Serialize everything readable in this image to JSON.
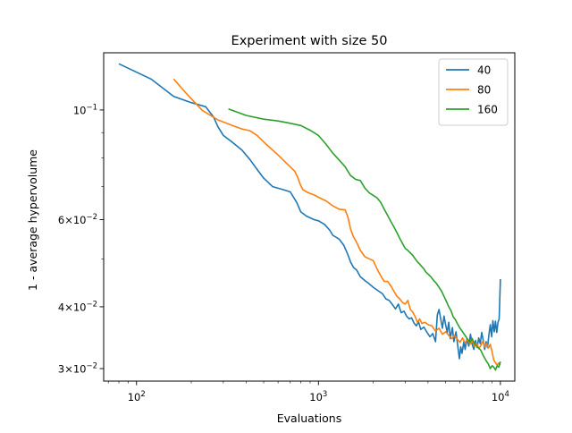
{
  "chart_data": {
    "type": "line",
    "title": "Experiment with size 50",
    "xlabel": "Evaluations",
    "ylabel": "1 - average hypervolume",
    "xscale": "log",
    "yscale": "log",
    "xlim": [
      66,
      12000
    ],
    "ylim": [
      0.0283,
      0.1305
    ],
    "grid": false,
    "legend_position": "top-right",
    "x_ticks": [
      {
        "value": 100,
        "base": "10",
        "exp": "2"
      },
      {
        "value": 1000,
        "base": "10",
        "exp": "3"
      },
      {
        "value": 10000,
        "base": "10",
        "exp": "4"
      }
    ],
    "y_ticks": [
      {
        "value": 0.1,
        "base": "10",
        "exp": "−1"
      },
      {
        "value": 0.06,
        "mant": "6",
        "base": "10",
        "exp": "−2"
      },
      {
        "value": 0.04,
        "mant": "4",
        "base": "10",
        "exp": "−2"
      },
      {
        "value": 0.03,
        "mant": "3",
        "base": "10",
        "exp": "−2"
      }
    ],
    "y_minor_ticks": [
      0.09,
      0.08,
      0.07,
      0.05
    ],
    "series": [
      {
        "name": "40",
        "color": "#1f77b4",
        "points": [
          [
            80,
            0.124
          ],
          [
            120,
            0.1155
          ],
          [
            160,
            0.1065
          ],
          [
            200,
            0.1035
          ],
          [
            240,
            0.1015
          ],
          [
            265,
            0.0968
          ],
          [
            280,
            0.0925
          ],
          [
            300,
            0.0888
          ],
          [
            340,
            0.0858
          ],
          [
            380,
            0.0829
          ],
          [
            420,
            0.0794
          ],
          [
            460,
            0.0758
          ],
          [
            500,
            0.0728
          ],
          [
            560,
            0.07
          ],
          [
            640,
            0.069
          ],
          [
            700,
            0.0683
          ],
          [
            760,
            0.065
          ],
          [
            800,
            0.0622
          ],
          [
            860,
            0.061
          ],
          [
            950,
            0.06
          ],
          [
            1000,
            0.0597
          ],
          [
            1080,
            0.0587
          ],
          [
            1150,
            0.0572
          ],
          [
            1200,
            0.0558
          ],
          [
            1300,
            0.0548
          ],
          [
            1380,
            0.0532
          ],
          [
            1450,
            0.051
          ],
          [
            1500,
            0.0493
          ],
          [
            1560,
            0.048
          ],
          [
            1620,
            0.0475
          ],
          [
            1700,
            0.046
          ],
          [
            1800,
            0.0452
          ],
          [
            1900,
            0.0445
          ],
          [
            2000,
            0.0438
          ],
          [
            2150,
            0.043
          ],
          [
            2250,
            0.0425
          ],
          [
            2350,
            0.0415
          ],
          [
            2450,
            0.0412
          ],
          [
            2550,
            0.0404
          ],
          [
            2650,
            0.0396
          ],
          [
            2750,
            0.0405
          ],
          [
            2850,
            0.0389
          ],
          [
            2950,
            0.0392
          ],
          [
            3050,
            0.0383
          ],
          [
            3150,
            0.0378
          ],
          [
            3250,
            0.038
          ],
          [
            3350,
            0.0371
          ],
          [
            3450,
            0.0366
          ],
          [
            3550,
            0.0373
          ],
          [
            3650,
            0.036
          ],
          [
            3800,
            0.0364
          ],
          [
            3950,
            0.0355
          ],
          [
            4100,
            0.0348
          ],
          [
            4250,
            0.0353
          ],
          [
            4400,
            0.034
          ],
          [
            4500,
            0.0385
          ],
          [
            4600,
            0.0395
          ],
          [
            4700,
            0.0378
          ],
          [
            4800,
            0.0362
          ],
          [
            4900,
            0.0383
          ],
          [
            5000,
            0.0368
          ],
          [
            5100,
            0.0355
          ],
          [
            5200,
            0.0372
          ],
          [
            5300,
            0.0345
          ],
          [
            5450,
            0.0363
          ],
          [
            5550,
            0.034
          ],
          [
            5700,
            0.0356
          ],
          [
            5850,
            0.033
          ],
          [
            5950,
            0.0314
          ],
          [
            6050,
            0.0332
          ],
          [
            6150,
            0.0322
          ],
          [
            6300,
            0.034
          ],
          [
            6400,
            0.0328
          ],
          [
            6550,
            0.0345
          ],
          [
            6700,
            0.0333
          ],
          [
            6850,
            0.0352
          ],
          [
            7000,
            0.0336
          ],
          [
            7150,
            0.0328
          ],
          [
            7300,
            0.0342
          ],
          [
            7450,
            0.0331
          ],
          [
            7600,
            0.0346
          ],
          [
            7750,
            0.0337
          ],
          [
            7900,
            0.0355
          ],
          [
            8050,
            0.0342
          ],
          [
            8200,
            0.0328
          ],
          [
            8350,
            0.034
          ],
          [
            8500,
            0.0331
          ],
          [
            8650,
            0.0352
          ],
          [
            8800,
            0.0368
          ],
          [
            8950,
            0.0348
          ],
          [
            9100,
            0.0375
          ],
          [
            9250,
            0.0356
          ],
          [
            9400,
            0.0374
          ],
          [
            9550,
            0.0355
          ],
          [
            9700,
            0.0372
          ],
          [
            9850,
            0.0378
          ],
          [
            10000,
            0.0455
          ]
        ]
      },
      {
        "name": "80",
        "color": "#ff7f0e",
        "points": [
          [
            160,
            0.1155
          ],
          [
            190,
            0.1075
          ],
          [
            230,
            0.0998
          ],
          [
            280,
            0.0955
          ],
          [
            330,
            0.0933
          ],
          [
            380,
            0.0915
          ],
          [
            420,
            0.0908
          ],
          [
            460,
            0.0888
          ],
          [
            520,
            0.085
          ],
          [
            600,
            0.0811
          ],
          [
            680,
            0.0775
          ],
          [
            740,
            0.0752
          ],
          [
            770,
            0.073
          ],
          [
            790,
            0.071
          ],
          [
            820,
            0.069
          ],
          [
            880,
            0.068
          ],
          [
            950,
            0.0673
          ],
          [
            1000,
            0.0666
          ],
          [
            1100,
            0.0655
          ],
          [
            1200,
            0.064
          ],
          [
            1300,
            0.063
          ],
          [
            1400,
            0.0628
          ],
          [
            1450,
            0.0608
          ],
          [
            1500,
            0.0575
          ],
          [
            1550,
            0.0556
          ],
          [
            1620,
            0.054
          ],
          [
            1700,
            0.052
          ],
          [
            1800,
            0.0505
          ],
          [
            1900,
            0.05
          ],
          [
            2000,
            0.0496
          ],
          [
            2100,
            0.0477
          ],
          [
            2200,
            0.0462
          ],
          [
            2300,
            0.045
          ],
          [
            2400,
            0.045
          ],
          [
            2500,
            0.0441
          ],
          [
            2600,
            0.043
          ],
          [
            2700,
            0.042
          ],
          [
            2800,
            0.0415
          ],
          [
            2900,
            0.0408
          ],
          [
            3000,
            0.0405
          ],
          [
            3100,
            0.0412
          ],
          [
            3200,
            0.0395
          ],
          [
            3300,
            0.039
          ],
          [
            3400,
            0.0382
          ],
          [
            3500,
            0.0372
          ],
          [
            3600,
            0.0378
          ],
          [
            3700,
            0.037
          ],
          [
            3850,
            0.0372
          ],
          [
            4000,
            0.0368
          ],
          [
            4200,
            0.0366
          ],
          [
            4400,
            0.0357
          ],
          [
            4600,
            0.0362
          ],
          [
            4800,
            0.0352
          ],
          [
            5000,
            0.0356
          ],
          [
            5200,
            0.035
          ],
          [
            5400,
            0.0345
          ],
          [
            5600,
            0.035
          ],
          [
            5800,
            0.0344
          ],
          [
            6000,
            0.0339
          ],
          [
            6200,
            0.0346
          ],
          [
            6400,
            0.0338
          ],
          [
            6600,
            0.0344
          ],
          [
            6800,
            0.0336
          ],
          [
            7000,
            0.0341
          ],
          [
            7200,
            0.0333
          ],
          [
            7400,
            0.0338
          ],
          [
            7600,
            0.0329
          ],
          [
            7800,
            0.0334
          ],
          [
            8000,
            0.0341
          ],
          [
            8200,
            0.0332
          ],
          [
            8400,
            0.0337
          ],
          [
            8600,
            0.033
          ],
          [
            8800,
            0.0336
          ],
          [
            9000,
            0.0324
          ],
          [
            9200,
            0.0312
          ],
          [
            9400,
            0.0308
          ],
          [
            9600,
            0.0305
          ],
          [
            9800,
            0.0308
          ],
          [
            10000,
            0.0305
          ]
        ]
      },
      {
        "name": "160",
        "color": "#2ca02c",
        "points": [
          [
            320,
            0.1005
          ],
          [
            400,
            0.0975
          ],
          [
            500,
            0.0958
          ],
          [
            600,
            0.095
          ],
          [
            700,
            0.094
          ],
          [
            800,
            0.093
          ],
          [
            900,
            0.091
          ],
          [
            1000,
            0.0888
          ],
          [
            1100,
            0.0853
          ],
          [
            1200,
            0.0818
          ],
          [
            1300,
            0.0792
          ],
          [
            1400,
            0.0768
          ],
          [
            1500,
            0.0737
          ],
          [
            1600,
            0.0724
          ],
          [
            1700,
            0.072
          ],
          [
            1800,
            0.0695
          ],
          [
            1900,
            0.068
          ],
          [
            2000,
            0.0672
          ],
          [
            2100,
            0.0664
          ],
          [
            2200,
            0.065
          ],
          [
            2300,
            0.063
          ],
          [
            2400,
            0.0612
          ],
          [
            2500,
            0.0595
          ],
          [
            2600,
            0.058
          ],
          [
            2700,
            0.0565
          ],
          [
            2800,
            0.055
          ],
          [
            2900,
            0.0537
          ],
          [
            3000,
            0.0525
          ],
          [
            3100,
            0.052
          ],
          [
            3200,
            0.0514
          ],
          [
            3300,
            0.0508
          ],
          [
            3400,
            0.05
          ],
          [
            3500,
            0.0493
          ],
          [
            3600,
            0.0488
          ],
          [
            3700,
            0.0482
          ],
          [
            3800,
            0.0477
          ],
          [
            3900,
            0.047
          ],
          [
            4000,
            0.0466
          ],
          [
            4150,
            0.046
          ],
          [
            4300,
            0.0452
          ],
          [
            4450,
            0.0446
          ],
          [
            4600,
            0.0438
          ],
          [
            4750,
            0.043
          ],
          [
            4900,
            0.042
          ],
          [
            5050,
            0.041
          ],
          [
            5200,
            0.04
          ],
          [
            5350,
            0.0393
          ],
          [
            5500,
            0.0382
          ],
          [
            5650,
            0.0377
          ],
          [
            5800,
            0.037
          ],
          [
            6000,
            0.0362
          ],
          [
            6200,
            0.0356
          ],
          [
            6400,
            0.035
          ],
          [
            6600,
            0.0344
          ],
          [
            6800,
            0.0339
          ],
          [
            7000,
            0.0345
          ],
          [
            7200,
            0.0337
          ],
          [
            7400,
            0.0333
          ],
          [
            7600,
            0.033
          ],
          [
            7800,
            0.0327
          ],
          [
            8000,
            0.032
          ],
          [
            8200,
            0.0315
          ],
          [
            8400,
            0.031
          ],
          [
            8600,
            0.0306
          ],
          [
            8800,
            0.03
          ],
          [
            9000,
            0.0304
          ],
          [
            9200,
            0.0302
          ],
          [
            9400,
            0.0298
          ],
          [
            9600,
            0.0304
          ],
          [
            9800,
            0.0302
          ],
          [
            10000,
            0.031
          ]
        ]
      }
    ]
  }
}
